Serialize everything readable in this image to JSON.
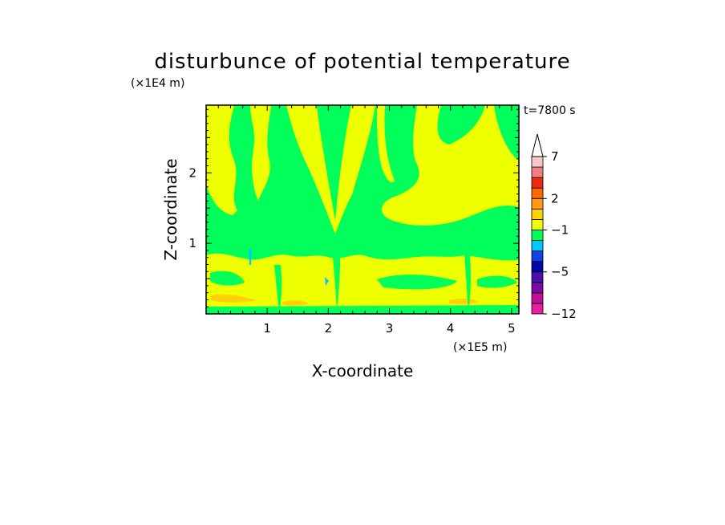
{
  "chart_data": {
    "type": "heatmap",
    "title": "disturbunce of potential temperature",
    "xlabel": "X-coordinate",
    "ylabel": "Z-coordinate",
    "x_unit": "(×1E5 m)",
    "y_unit": "(×1E4 m)",
    "time_label": "t=7800 s",
    "xlim": [
      0,
      5.12
    ],
    "ylim": [
      0,
      2.96
    ],
    "x_ticks": [
      1,
      2,
      3,
      4,
      5
    ],
    "y_ticks": [
      1,
      2
    ],
    "colorbar": {
      "levels": [
        -12,
        -10,
        -8,
        -6,
        -5,
        -4,
        -3,
        -2,
        -1,
        0,
        1,
        2,
        3,
        4,
        6,
        7,
        8
      ],
      "colors": [
        "#e81ea0",
        "#c0109a",
        "#7a0aa0",
        "#4a10b0",
        "#0008a8",
        "#1040e8",
        "#00c8ff",
        "#00ff5a",
        "#eeff00",
        "#ffd200",
        "#ff9a14",
        "#ff6a00",
        "#ee2a10",
        "#f08080",
        "#f8c8c8"
      ],
      "labels": [
        {
          "text": "7",
          "value": 7
        },
        {
          "text": "2",
          "value": 2
        },
        {
          "text": "−1",
          "value": -1
        },
        {
          "text": "−5",
          "value": -5
        },
        {
          "text": "−12",
          "value": -12
        }
      ],
      "extend": "max"
    }
  }
}
